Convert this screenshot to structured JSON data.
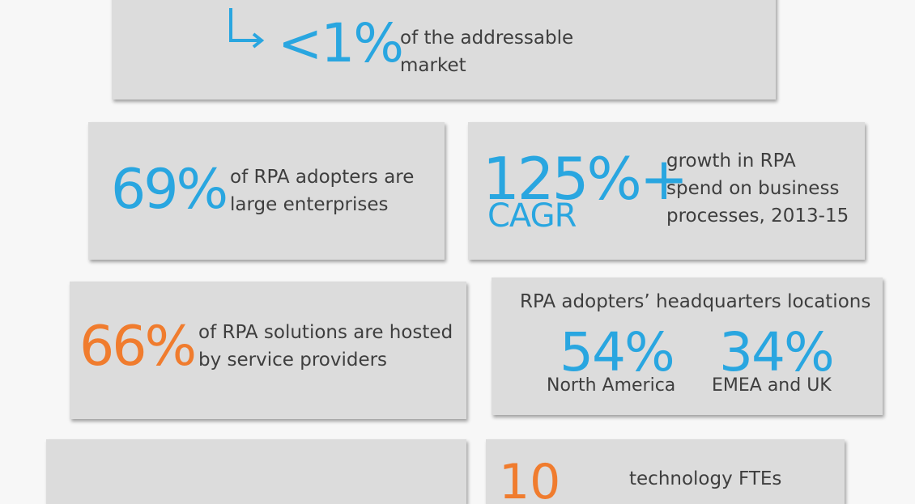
{
  "cards": {
    "top": {
      "value": "<1%",
      "description": "of the addressable market",
      "desc_line1": "of the addressable",
      "desc_line2": "market"
    },
    "large_enterprises": {
      "value": "69%",
      "desc_line1": "of RPA adopters are",
      "desc_line2": "large enterprises"
    },
    "cagr": {
      "value": "125%+",
      "sub_label": "CAGR",
      "desc_line1": "growth in RPA",
      "desc_line2": "spend on business",
      "desc_line3": "processes, 2013-15"
    },
    "hosted": {
      "value": "66%",
      "desc_line1": "of RPA solutions are hosted",
      "desc_line2": "by service providers"
    },
    "headquarters": {
      "title": "RPA adopters’ headquarters locations",
      "north_america_value": "54%",
      "north_america_label": "North America",
      "emea_value": "34%",
      "emea_label": "EMEA and UK"
    },
    "bottom_right": {
      "value": "10",
      "description_partial": "technology FTEs"
    }
  },
  "colors": {
    "blue": "#29a6e0",
    "orange": "#f07c2e",
    "card_bg": "#dcdcdc",
    "text": "#3e3e3e"
  },
  "icons": {
    "top_arrow": "arrow-turn-right-icon"
  }
}
